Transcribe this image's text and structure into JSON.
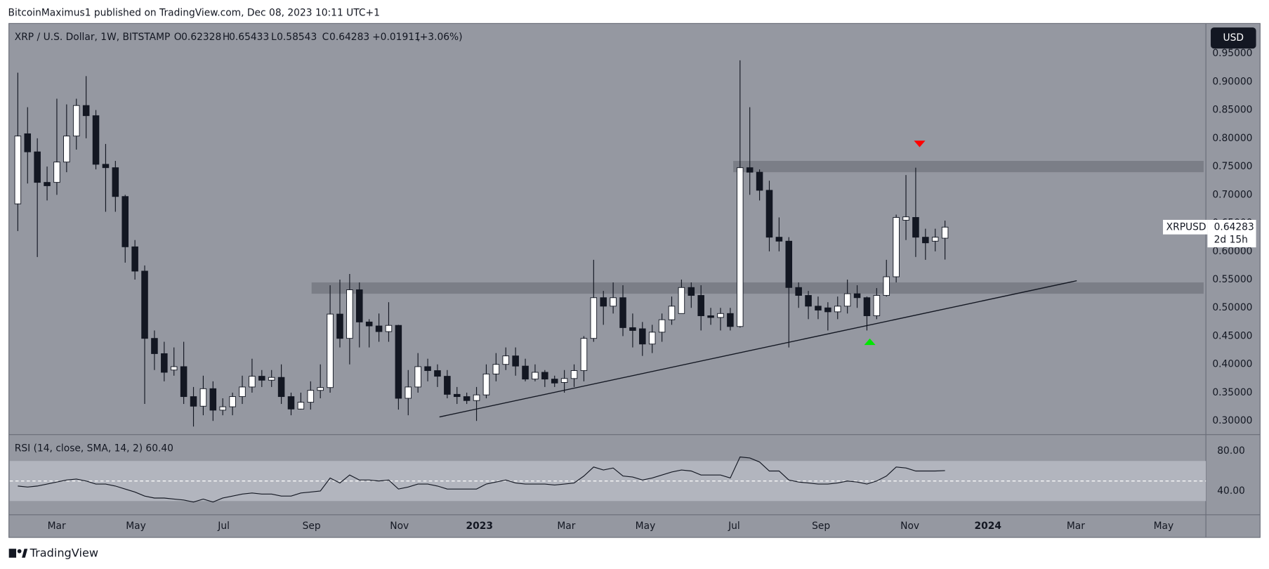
{
  "header": {
    "text": "BitcoinMaximus1 published on TradingView.com, Dec 08, 2023 10:11 UTC+1"
  },
  "footer": {
    "brand": "TradingView"
  },
  "currency_button": "USD",
  "chart_data": [
    {
      "type": "candlestick",
      "title": "XRP / U.S. Dollar, 1W, BITSTAMP",
      "quote": [
        {
          "label": "O",
          "text": "0.62328"
        },
        {
          "label": "H",
          "text": "0.65433"
        },
        {
          "label": "L",
          "text": "0.58543"
        },
        {
          "label": "C",
          "text": "0.64283"
        }
      ],
      "change": "+0.01911",
      "change_pct": "(+3.06%)",
      "last_price_label": {
        "name": "XRPUSD",
        "value": "0.64283",
        "countdown": "2d 15h"
      },
      "up_color": "#ffffff",
      "down_color": "#131722",
      "wick_color": "#131722",
      "x": [
        0,
        1,
        2,
        3,
        4,
        5,
        6,
        7,
        8,
        9,
        10,
        11,
        12,
        13,
        14,
        15,
        16,
        17,
        18,
        19,
        20,
        21,
        22,
        23,
        24,
        25,
        26,
        27,
        28,
        29,
        30,
        31,
        32,
        33,
        34,
        35,
        36,
        37,
        38,
        39,
        40,
        41,
        42,
        43,
        44,
        45,
        46,
        47,
        48,
        49,
        50,
        51,
        52,
        53,
        54,
        55,
        56,
        57,
        58,
        59,
        60,
        61,
        62,
        63,
        64,
        65,
        66,
        67,
        68,
        69,
        70,
        71,
        72,
        73,
        74,
        75,
        76,
        77,
        78,
        79,
        80,
        81,
        82,
        83,
        84,
        85,
        86,
        87,
        88,
        89,
        90,
        91,
        92,
        93,
        94,
        95
      ],
      "open": [
        0.684,
        0.808,
        0.776,
        0.722,
        0.722,
        0.758,
        0.804,
        0.858,
        0.84,
        0.754,
        0.748,
        0.697,
        0.608,
        0.565,
        0.446,
        0.419,
        0.39,
        0.396,
        0.343,
        0.326,
        0.357,
        0.319,
        0.325,
        0.343,
        0.36,
        0.379,
        0.372,
        0.377,
        0.343,
        0.321,
        0.333,
        0.354,
        0.359,
        0.489,
        0.446,
        0.532,
        0.475,
        0.468,
        0.458,
        0.469,
        0.34,
        0.36,
        0.396,
        0.389,
        0.379,
        0.347,
        0.343,
        0.336,
        0.346,
        0.383,
        0.4,
        0.415,
        0.397,
        0.374,
        0.386,
        0.374,
        0.368,
        0.375,
        0.389,
        0.446,
        0.518,
        0.503,
        0.518,
        0.465,
        0.463,
        0.436,
        0.457,
        0.479,
        0.49,
        0.536,
        0.522,
        0.486,
        0.483,
        0.49,
        0.467,
        0.748,
        0.74,
        0.708,
        0.625,
        0.618,
        0.536,
        0.522,
        0.503,
        0.5,
        0.493,
        0.503,
        0.525,
        0.518,
        0.486,
        0.522,
        0.555,
        0.655,
        0.66,
        0.625,
        0.618,
        0.62328
      ],
      "high": [
        0.916,
        0.855,
        0.8,
        0.75,
        0.87,
        0.86,
        0.87,
        0.91,
        0.85,
        0.79,
        0.76,
        0.7,
        0.62,
        0.575,
        0.46,
        0.44,
        0.43,
        0.44,
        0.36,
        0.38,
        0.37,
        0.34,
        0.35,
        0.38,
        0.41,
        0.39,
        0.39,
        0.4,
        0.35,
        0.35,
        0.37,
        0.4,
        0.54,
        0.55,
        0.56,
        0.545,
        0.48,
        0.49,
        0.51,
        0.47,
        0.39,
        0.42,
        0.41,
        0.4,
        0.39,
        0.36,
        0.35,
        0.36,
        0.4,
        0.42,
        0.43,
        0.43,
        0.41,
        0.4,
        0.39,
        0.38,
        0.39,
        0.4,
        0.45,
        0.585,
        0.53,
        0.545,
        0.54,
        0.49,
        0.475,
        0.47,
        0.49,
        0.52,
        0.55,
        0.545,
        0.54,
        0.5,
        0.5,
        0.5,
        0.938,
        0.855,
        0.745,
        0.725,
        0.66,
        0.625,
        0.545,
        0.53,
        0.52,
        0.51,
        0.52,
        0.55,
        0.54,
        0.52,
        0.535,
        0.585,
        0.665,
        0.735,
        0.748,
        0.64,
        0.64,
        0.65433
      ],
      "low": [
        0.636,
        0.72,
        0.59,
        0.69,
        0.7,
        0.74,
        0.78,
        0.8,
        0.745,
        0.67,
        0.67,
        0.58,
        0.55,
        0.33,
        0.39,
        0.37,
        0.38,
        0.33,
        0.29,
        0.31,
        0.3,
        0.31,
        0.31,
        0.33,
        0.35,
        0.36,
        0.36,
        0.33,
        0.31,
        0.32,
        0.32,
        0.34,
        0.35,
        0.43,
        0.4,
        0.43,
        0.43,
        0.44,
        0.44,
        0.32,
        0.31,
        0.35,
        0.37,
        0.36,
        0.34,
        0.33,
        0.33,
        0.3,
        0.34,
        0.37,
        0.39,
        0.38,
        0.37,
        0.37,
        0.36,
        0.36,
        0.35,
        0.36,
        0.37,
        0.44,
        0.47,
        0.49,
        0.45,
        0.43,
        0.415,
        0.42,
        0.44,
        0.47,
        0.49,
        0.5,
        0.46,
        0.47,
        0.46,
        0.46,
        0.465,
        0.7,
        0.69,
        0.6,
        0.6,
        0.43,
        0.5,
        0.48,
        0.48,
        0.46,
        0.48,
        0.49,
        0.5,
        0.46,
        0.48,
        0.52,
        0.545,
        0.62,
        0.59,
        0.585,
        0.6,
        0.58543
      ],
      "close": [
        0.804,
        0.776,
        0.722,
        0.716,
        0.758,
        0.804,
        0.858,
        0.84,
        0.754,
        0.748,
        0.697,
        0.608,
        0.565,
        0.446,
        0.419,
        0.386,
        0.396,
        0.343,
        0.326,
        0.357,
        0.319,
        0.325,
        0.343,
        0.36,
        0.379,
        0.372,
        0.377,
        0.343,
        0.321,
        0.333,
        0.354,
        0.359,
        0.489,
        0.446,
        0.532,
        0.475,
        0.468,
        0.458,
        0.469,
        0.34,
        0.36,
        0.396,
        0.389,
        0.379,
        0.347,
        0.343,
        0.336,
        0.346,
        0.383,
        0.4,
        0.415,
        0.397,
        0.374,
        0.386,
        0.374,
        0.367,
        0.375,
        0.389,
        0.446,
        0.518,
        0.503,
        0.518,
        0.465,
        0.46,
        0.436,
        0.457,
        0.479,
        0.503,
        0.536,
        0.522,
        0.486,
        0.483,
        0.49,
        0.467,
        0.748,
        0.74,
        0.708,
        0.625,
        0.618,
        0.536,
        0.522,
        0.503,
        0.496,
        0.493,
        0.503,
        0.525,
        0.518,
        0.486,
        0.522,
        0.555,
        0.66,
        0.661,
        0.625,
        0.615,
        0.625,
        0.64283
      ],
      "xlim": [
        -0.83,
        121.73
      ],
      "xticks": [
        {
          "value": 3.98,
          "label": "Mar"
        },
        {
          "value": 12.1,
          "label": "May"
        },
        {
          "value": 21.1,
          "label": "Jul"
        },
        {
          "value": 30.1,
          "label": "Sep"
        },
        {
          "value": 39.1,
          "label": "Nov"
        },
        {
          "value": 47.3,
          "label": "2023"
        },
        {
          "value": 56.2,
          "label": "Mar"
        },
        {
          "value": 64.3,
          "label": "May"
        },
        {
          "value": 73.4,
          "label": "Jul"
        },
        {
          "value": 82.3,
          "label": "Sep"
        },
        {
          "value": 91.4,
          "label": "Nov"
        },
        {
          "value": 99.4,
          "label": "2024"
        },
        {
          "value": 108.4,
          "label": "Mar"
        },
        {
          "value": 117.4,
          "label": "May"
        }
      ],
      "ylim": [
        0.2757,
        1.0017
      ],
      "yticks": [
        {
          "value": 0.3,
          "label": "0.30000"
        },
        {
          "value": 0.35,
          "label": "0.35000"
        },
        {
          "value": 0.4,
          "label": "0.40000"
        },
        {
          "value": 0.45,
          "label": "0.45000"
        },
        {
          "value": 0.5,
          "label": "0.50000"
        },
        {
          "value": 0.55,
          "label": "0.55000"
        },
        {
          "value": 0.6,
          "label": "0.60000"
        },
        {
          "value": 0.65,
          "label": "0.65000"
        },
        {
          "value": 0.7,
          "label": "0.70000"
        },
        {
          "value": 0.75,
          "label": "0.75000"
        },
        {
          "value": 0.8,
          "label": "0.80000"
        },
        {
          "value": 0.85,
          "label": "0.85000"
        },
        {
          "value": 0.9,
          "label": "0.90000"
        },
        {
          "value": 0.95,
          "label": "0.95000"
        }
      ],
      "grid": false,
      "zones": [
        {
          "x": [
            30.1,
            121.5
          ],
          "y": [
            0.525,
            0.545
          ],
          "color": "#7b7e87"
        },
        {
          "x": [
            73.3,
            121.5
          ],
          "y": [
            0.74,
            0.76
          ],
          "color": "#7b7e87"
        }
      ],
      "trendline": {
        "x": [
          43.2,
          108.5
        ],
        "y": [
          0.307,
          0.548
        ],
        "color": "#131722"
      },
      "markers": [
        {
          "x": 92.4,
          "y": 0.79,
          "direction": "down",
          "color": "#ff0000"
        },
        {
          "x": 87.3,
          "y": 0.44,
          "direction": "up",
          "color": "#00e600"
        }
      ]
    },
    {
      "type": "line",
      "title": "RSI (14, close, SMA, 14, 2)",
      "last_value_label": "60.40",
      "color": "#131722",
      "x": [
        0,
        1,
        2,
        3,
        4,
        5,
        6,
        7,
        8,
        9,
        10,
        11,
        12,
        13,
        14,
        15,
        16,
        17,
        18,
        19,
        20,
        21,
        22,
        23,
        24,
        25,
        26,
        27,
        28,
        29,
        30,
        31,
        32,
        33,
        34,
        35,
        36,
        37,
        38,
        39,
        40,
        41,
        42,
        43,
        44,
        45,
        46,
        47,
        48,
        49,
        50,
        51,
        52,
        53,
        54,
        55,
        56,
        57,
        58,
        59,
        60,
        61,
        62,
        63,
        64,
        65,
        66,
        67,
        68,
        69,
        70,
        71,
        72,
        73,
        74,
        75,
        76,
        77,
        78,
        79,
        80,
        81,
        82,
        83,
        84,
        85,
        86,
        87,
        88,
        89,
        90,
        91,
        92,
        93,
        94,
        95
      ],
      "values": [
        45,
        44,
        45,
        47,
        49,
        51,
        52,
        50,
        47,
        47,
        45,
        42,
        39,
        35,
        33,
        33,
        32,
        31,
        29,
        32,
        29,
        33,
        35,
        37,
        38,
        37,
        37,
        35,
        35,
        38,
        39,
        40,
        53,
        48,
        56,
        51,
        51,
        50,
        51,
        42,
        44,
        47,
        47,
        45,
        42,
        42,
        42,
        42,
        47,
        49,
        51,
        48,
        47,
        47,
        47,
        46,
        47,
        48,
        55,
        64,
        61,
        63,
        55,
        54,
        51,
        53,
        56,
        59,
        61,
        60,
        56,
        56,
        56,
        53,
        74,
        73,
        69,
        60,
        60,
        51,
        49,
        48,
        47,
        47,
        48,
        50,
        49,
        47,
        50,
        55,
        64,
        63,
        60,
        60,
        60,
        60.4
      ],
      "xlim": [
        -0.83,
        121.73
      ],
      "ylim": [
        16.3,
        96.3
      ],
      "yticks": [
        {
          "value": 40,
          "label": "40.00"
        },
        {
          "value": 80,
          "label": "80.00"
        }
      ],
      "band": [
        30,
        70
      ],
      "band_color": "#b2b5be",
      "midline": 50
    }
  ]
}
